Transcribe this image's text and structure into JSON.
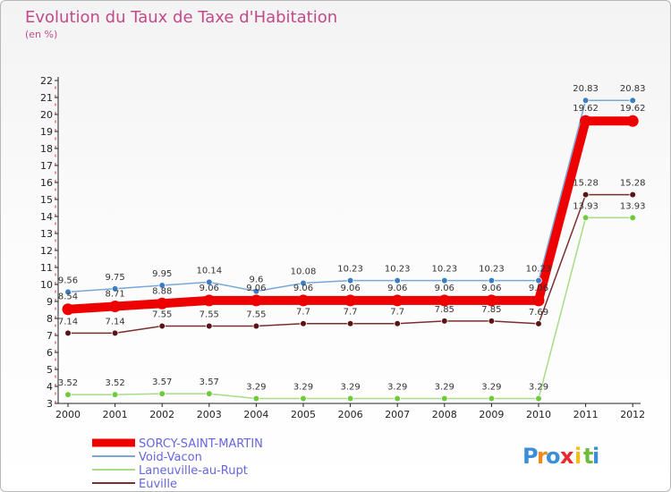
{
  "chart_data": {
    "type": "line",
    "title": "Evolution du Taux de Taxe d'Habitation",
    "subtitle": "(en %)",
    "x": [
      "2000",
      "2001",
      "2002",
      "2003",
      "2004",
      "2005",
      "2006",
      "2007",
      "2008",
      "2009",
      "2010",
      "2011",
      "2012"
    ],
    "ylim": [
      3,
      22
    ],
    "yticks": [
      3,
      4,
      5,
      6,
      7,
      8,
      9,
      10,
      11,
      12,
      13,
      14,
      15,
      16,
      17,
      18,
      19,
      20,
      21,
      22
    ],
    "grid": false,
    "legend_position": "bottom-left",
    "series": [
      {
        "name": "SORCY-SAINT-MARTIN",
        "color": "#ee0000",
        "width": 10,
        "values": [
          8.54,
          8.71,
          8.88,
          9.06,
          9.06,
          9.06,
          9.06,
          9.06,
          9.06,
          9.06,
          9.06,
          19.62,
          19.62
        ]
      },
      {
        "name": "Void-Vacon",
        "color": "#78a8d8",
        "marker": "#3a7fc4",
        "width": 1.5,
        "values": [
          9.56,
          9.75,
          9.95,
          10.14,
          9.6,
          10.08,
          10.23,
          10.23,
          10.23,
          10.23,
          10.23,
          20.83,
          20.83
        ]
      },
      {
        "name": "Laneuville-au-Rupt",
        "color": "#a6dc86",
        "marker": "#6ecb3c",
        "width": 1.5,
        "values": [
          3.52,
          3.52,
          3.57,
          3.57,
          3.29,
          3.29,
          3.29,
          3.29,
          3.29,
          3.29,
          3.29,
          13.93,
          13.93
        ]
      },
      {
        "name": "Euville",
        "color": "#7a2e2e",
        "marker": "#5a1414",
        "width": 1.5,
        "values": [
          7.14,
          7.14,
          7.55,
          7.55,
          7.55,
          7.7,
          7.7,
          7.7,
          7.85,
          7.85,
          7.69,
          15.28,
          15.28
        ]
      }
    ],
    "data_labels": [
      {
        "series": "Void-Vacon",
        "labels": [
          "9.56",
          "9.75",
          "9.95",
          "10.14",
          "9.6",
          "10.08",
          "10.23",
          "10.23",
          "10.23",
          "10.23",
          "10.23",
          "20.83",
          "20.83"
        ]
      },
      {
        "series": "SORCY-SAINT-MARTIN",
        "labels": [
          "8.54",
          "8.71",
          "8.88",
          "9.06",
          "9.06",
          "9.06",
          "9.06",
          "9.06",
          "9.06",
          "9.06",
          "9.06",
          "19.62",
          "19.62"
        ]
      },
      {
        "series": "Euville",
        "labels": [
          "7.14",
          "7.14",
          "7.55",
          "7.55",
          "7.55",
          "7.7",
          "7.7",
          "7.7",
          "7.85",
          "7.85",
          "7.69",
          "15.28",
          "15.28"
        ]
      },
      {
        "series": "Laneuville-au-Rupt",
        "labels": [
          "3.52",
          "3.52",
          "3.57",
          "3.57",
          "3.29",
          "3.29",
          "3.29",
          "3.29",
          "3.29",
          "3.29",
          "3.29",
          "13.93",
          "13.93"
        ]
      }
    ]
  },
  "logo": {
    "letters": [
      "P",
      "r",
      "o",
      "x",
      "i",
      "t",
      "i"
    ],
    "colors": [
      "#3a8fd8",
      "#f08a1c",
      "#3a8fd8",
      "#e8282a",
      "#f0c020",
      "#6dbb3c",
      "#3a8fd8"
    ]
  }
}
